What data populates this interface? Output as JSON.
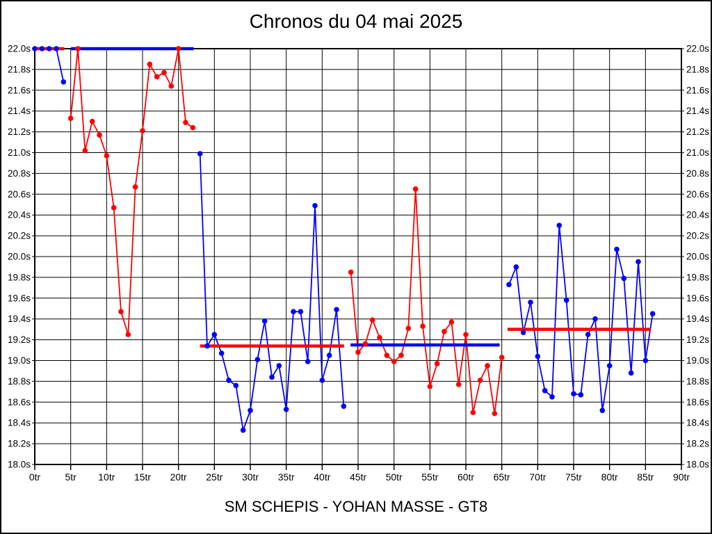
{
  "chart_data": {
    "type": "line",
    "title": "Chronos du 04 mai 2025",
    "subtitle": "SM SCHEPIS - YOHAN MASSE - GT8",
    "x_unit": "tr",
    "y_unit": "s",
    "xlim": [
      0,
      90
    ],
    "ylim": [
      18.0,
      22.0
    ],
    "grid": true,
    "legend": "none",
    "clipping_note": "lap times above 22.0s are clipped to the top axis line",
    "colors": {
      "red": "#ff0000",
      "blue": "#0000ff",
      "grid": "#000000",
      "background": "#ffffff"
    },
    "x_ticks": [
      {
        "value": 0,
        "label": "0tr"
      },
      {
        "value": 5,
        "label": "5tr"
      },
      {
        "value": 10,
        "label": "10tr"
      },
      {
        "value": 15,
        "label": "15tr"
      },
      {
        "value": 20,
        "label": "20tr"
      },
      {
        "value": 25,
        "label": "25tr"
      },
      {
        "value": 30,
        "label": "30tr"
      },
      {
        "value": 35,
        "label": "35tr"
      },
      {
        "value": 40,
        "label": "40tr"
      },
      {
        "value": 45,
        "label": "45tr"
      },
      {
        "value": 50,
        "label": "50tr"
      },
      {
        "value": 55,
        "label": "55tr"
      },
      {
        "value": 60,
        "label": "60tr"
      },
      {
        "value": 65,
        "label": "65tr"
      },
      {
        "value": 70,
        "label": "70tr"
      },
      {
        "value": 75,
        "label": "75tr"
      },
      {
        "value": 80,
        "label": "80tr"
      },
      {
        "value": 85,
        "label": "85tr"
      },
      {
        "value": 90,
        "label": "90tr"
      }
    ],
    "y_ticks": [
      {
        "value": 22.0,
        "label": "22.0s"
      },
      {
        "value": 21.8,
        "label": "21.8s"
      },
      {
        "value": 21.6,
        "label": "21.6s"
      },
      {
        "value": 21.4,
        "label": "21.4s"
      },
      {
        "value": 21.2,
        "label": "21.2s"
      },
      {
        "value": 21.0,
        "label": "21.0s"
      },
      {
        "value": 20.8,
        "label": "20.8s"
      },
      {
        "value": 20.6,
        "label": "20.6s"
      },
      {
        "value": 20.4,
        "label": "20.4s"
      },
      {
        "value": 20.2,
        "label": "20.2s"
      },
      {
        "value": 20.0,
        "label": "20.0s"
      },
      {
        "value": 19.8,
        "label": "19.8s"
      },
      {
        "value": 19.6,
        "label": "19.6s"
      },
      {
        "value": 19.4,
        "label": "19.4s"
      },
      {
        "value": 19.2,
        "label": "19.2s"
      },
      {
        "value": 19.0,
        "label": "19.0s"
      },
      {
        "value": 18.8,
        "label": "18.8s"
      },
      {
        "value": 18.6,
        "label": "18.6s"
      },
      {
        "value": 18.4,
        "label": "18.4s"
      },
      {
        "value": 18.2,
        "label": "18.2s"
      },
      {
        "value": 18.0,
        "label": "18.0s"
      }
    ],
    "series": [
      {
        "name": "stint1-blue",
        "color": "blue",
        "start_lap": 0,
        "values": [
          22.0,
          22.0,
          22.0,
          22.0,
          21.68
        ]
      },
      {
        "name": "stint2-red",
        "color": "red",
        "start_lap": 5,
        "values": [
          21.33,
          22.0,
          21.02,
          21.3,
          21.17,
          20.97,
          20.47,
          19.47,
          19.25,
          20.67,
          21.21,
          21.85,
          21.73,
          21.77,
          21.64,
          22.0,
          21.29,
          21.24
        ]
      },
      {
        "name": "stint3-blue",
        "color": "blue",
        "start_lap": 23,
        "values": [
          20.99,
          19.14,
          19.25,
          19.07,
          18.81,
          18.76,
          18.33,
          18.52,
          19.01,
          19.38,
          18.84,
          18.95,
          18.53,
          19.47,
          19.47,
          18.99,
          20.49,
          18.81,
          19.05,
          19.49,
          18.56
        ]
      },
      {
        "name": "stint4-red",
        "color": "red",
        "start_lap": 44,
        "values": [
          19.85,
          19.08,
          19.16,
          19.39,
          19.22,
          19.05,
          18.99,
          19.05,
          19.31,
          20.65,
          19.33,
          18.75,
          18.97,
          19.28,
          19.37,
          18.77,
          19.25,
          18.5,
          18.81,
          18.95,
          18.49,
          19.03
        ]
      },
      {
        "name": "stint5-blue",
        "color": "blue",
        "start_lap": 66,
        "values": [
          19.73,
          19.9,
          19.27,
          19.56,
          19.04,
          18.71,
          18.65,
          20.3,
          19.58,
          18.68,
          18.67,
          19.25,
          19.4,
          18.52,
          18.95,
          20.07,
          19.79,
          18.88,
          19.95,
          19.0,
          19.45
        ]
      }
    ],
    "average_lines": [
      {
        "name": "avg-stint1",
        "color": "red",
        "value": 22.0,
        "from_lap": 0.0,
        "to_lap": 4.1
      },
      {
        "name": "avg-stint2",
        "color": "blue",
        "value": 22.0,
        "from_lap": 5.05,
        "to_lap": 22.1
      },
      {
        "name": "avg-stint3",
        "color": "red",
        "value": 19.14,
        "from_lap": 23.0,
        "to_lap": 43.05
      },
      {
        "name": "avg-stint4",
        "color": "blue",
        "value": 19.15,
        "from_lap": 43.95,
        "to_lap": 64.7
      },
      {
        "name": "avg-stint5",
        "color": "red",
        "value": 19.3,
        "from_lap": 65.8,
        "to_lap": 85.7
      }
    ]
  }
}
